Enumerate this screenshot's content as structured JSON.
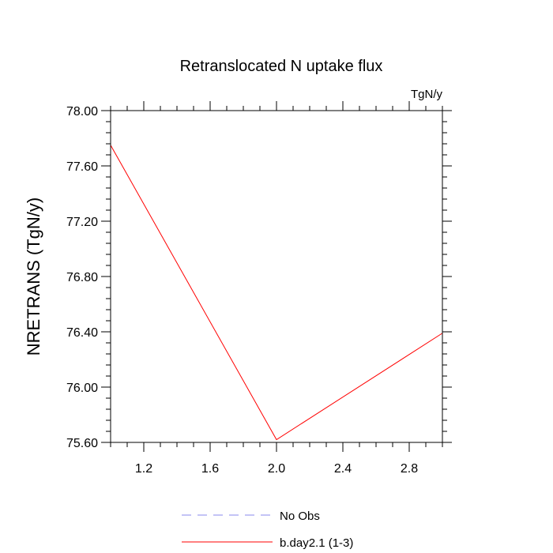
{
  "chart_data": {
    "type": "line",
    "title": "Retranslocated N uptake flux",
    "units": "TgN/y",
    "ylabel": "NRETRANS  (TgN/y)",
    "xlabel": "",
    "xlim": [
      1.0,
      3.0
    ],
    "ylim": [
      75.6,
      78.0
    ],
    "x_ticks": [
      1.2,
      1.6,
      2.0,
      2.4,
      2.8
    ],
    "x_tick_labels": [
      "1.2",
      "1.6",
      "2.0",
      "2.4",
      "2.8"
    ],
    "y_ticks": [
      75.6,
      76.0,
      76.4,
      76.8,
      77.2,
      77.6,
      78.0
    ],
    "y_tick_labels": [
      "75.60",
      "76.00",
      "76.40",
      "76.80",
      "77.20",
      "77.60",
      "78.00"
    ],
    "grid": false,
    "legend_placement": "bottom-center",
    "series": [
      {
        "name": "No Obs",
        "color": "#8888ee",
        "dash": "dashed",
        "x": [],
        "y": []
      },
      {
        "name": "b.day2.1 (1-3)",
        "color": "#ff0000",
        "dash": "solid",
        "x": [
          1.0,
          2.0,
          3.0
        ],
        "y": [
          77.75,
          75.62,
          76.39
        ]
      }
    ]
  }
}
